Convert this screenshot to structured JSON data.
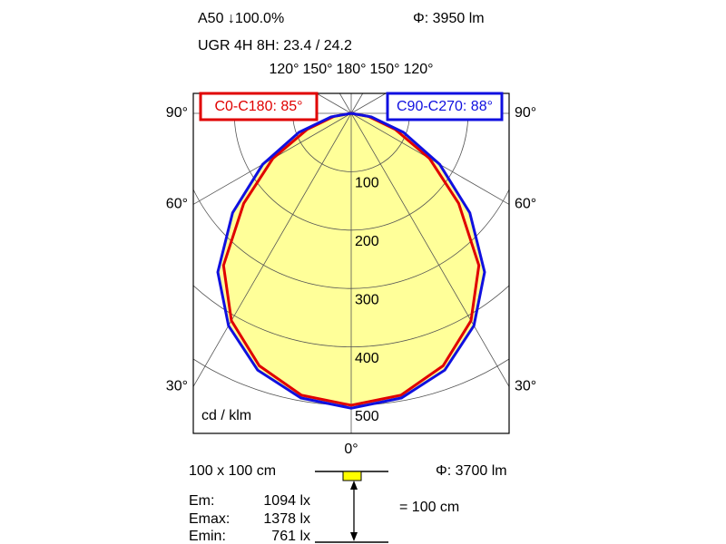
{
  "chart_data": {
    "type": "polar",
    "header": {
      "lamp": "A50 ↓100.0%",
      "flux": "Φ: 3950 lm",
      "ugr": "UGR 4H 8H: 23.4 / 24.2"
    },
    "unit_label": "cd / klm",
    "angles": [
      -90,
      -80,
      -70,
      -60,
      -50,
      -40,
      -30,
      -20,
      -10,
      0,
      10,
      20,
      30,
      40,
      50,
      60,
      70,
      80,
      90
    ],
    "series": [
      {
        "name": "C0-C180: 85°",
        "color": "#e00000",
        "values": [
          0,
          30,
          80,
          155,
          240,
          340,
          410,
          460,
          490,
          500,
          490,
          460,
          410,
          340,
          240,
          155,
          80,
          30,
          0
        ]
      },
      {
        "name": "C90-C270: 88°",
        "color": "#1010e0",
        "values": [
          0,
          35,
          95,
          175,
          265,
          355,
          420,
          468,
          495,
          505,
          495,
          468,
          420,
          355,
          265,
          175,
          95,
          35,
          0
        ]
      }
    ],
    "rlim": [
      0,
      500
    ],
    "rticks": [
      100,
      200,
      300,
      400,
      500
    ],
    "angle_ticks": [
      {
        "value": -120,
        "label": "120°"
      },
      {
        "value": -150,
        "label": "150°"
      },
      {
        "value": 180,
        "label": "180°"
      },
      {
        "value": 150,
        "label": "150°"
      },
      {
        "value": 120,
        "label": "120°"
      },
      {
        "value": -90,
        "label": "90°"
      },
      {
        "value": 90,
        "label": "90°"
      },
      {
        "value": -60,
        "label": "60°"
      },
      {
        "value": 60,
        "label": "60°"
      },
      {
        "value": -30,
        "label": "30°"
      },
      {
        "value": 30,
        "label": "30°"
      },
      {
        "value": 0,
        "label": "0°"
      }
    ],
    "fill_color": "#ffff99",
    "illuminance": {
      "area": "100 x 100 cm",
      "flux": "Φ: 3700 lm",
      "distance": "= 100 cm",
      "rows": [
        [
          "Em:",
          "1094 lx"
        ],
        [
          "Emax:",
          "1378 lx"
        ],
        [
          "Emin:",
          "761 lx"
        ]
      ]
    }
  }
}
